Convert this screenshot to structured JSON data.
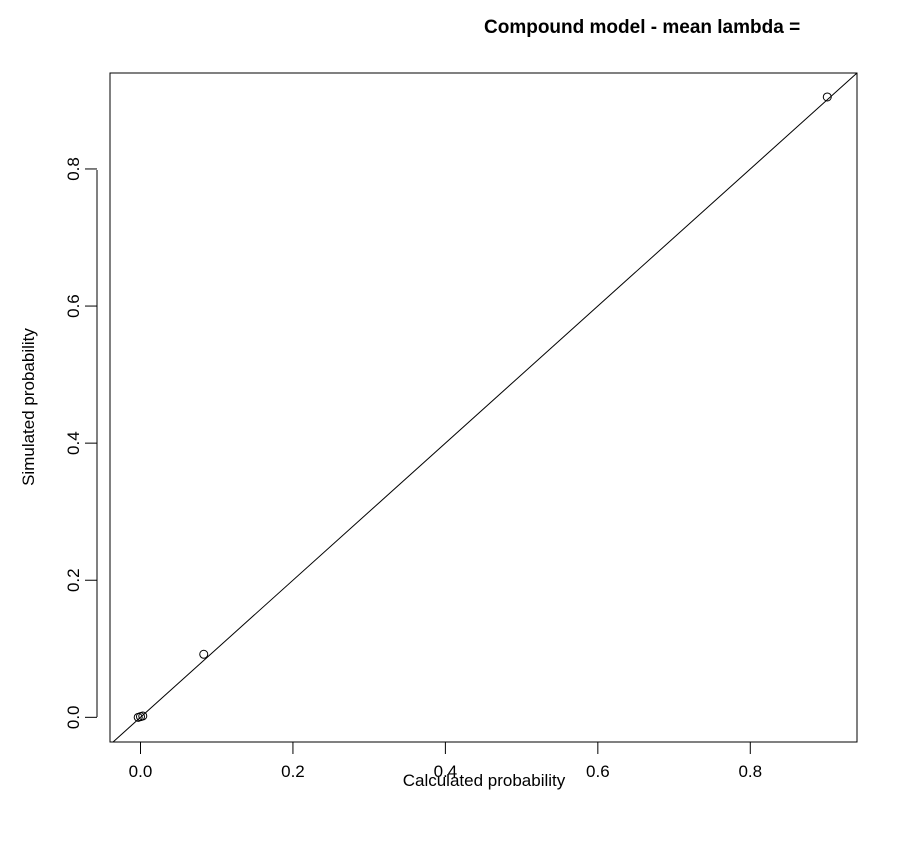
{
  "chart_data": {
    "type": "scatter",
    "title": "Compound model - mean lambda =",
    "xlabel": "Calculated probability",
    "ylabel": "Simulated probability",
    "xlim": [
      -0.04,
      0.94
    ],
    "ylim": [
      -0.036,
      0.94
    ],
    "x_ticks": [
      {
        "value": 0.0,
        "label": "0.0"
      },
      {
        "value": 0.2,
        "label": "0.2"
      },
      {
        "value": 0.4,
        "label": "0.4"
      },
      {
        "value": 0.6,
        "label": "0.6"
      },
      {
        "value": 0.8,
        "label": "0.8"
      }
    ],
    "y_ticks": [
      {
        "value": 0.0,
        "label": "0.0"
      },
      {
        "value": 0.2,
        "label": "0.2"
      },
      {
        "value": 0.4,
        "label": "0.4"
      },
      {
        "value": 0.6,
        "label": "0.6"
      },
      {
        "value": 0.8,
        "label": "0.8"
      }
    ],
    "points": [
      {
        "x": -0.003,
        "y": 0.0
      },
      {
        "x": 0.0,
        "y": 0.001
      },
      {
        "x": 0.003,
        "y": 0.002
      },
      {
        "x": 0.083,
        "y": 0.092
      },
      {
        "x": 0.901,
        "y": 0.905
      }
    ],
    "reference_line": {
      "type": "identity",
      "slope": 1,
      "intercept": 0
    },
    "grid": false,
    "legend": "none",
    "colors": {
      "ink": "#000000",
      "background": "#ffffff"
    }
  }
}
